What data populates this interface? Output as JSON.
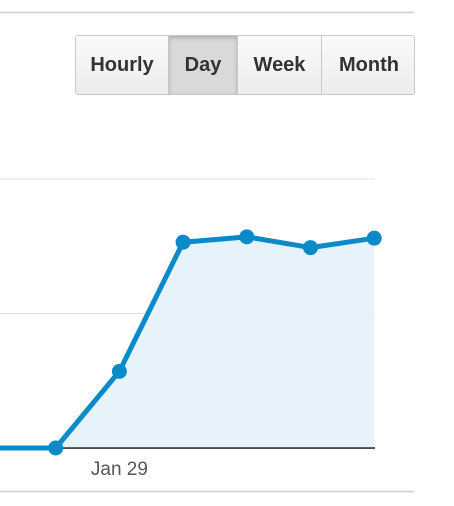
{
  "buttons": [
    "Hourly",
    "Day",
    "Week",
    "Month"
  ],
  "selected_button": 1,
  "chart_data": {
    "type": "area",
    "categories": [
      null,
      null,
      "Jan 29",
      null,
      null,
      null,
      null
    ],
    "values": [
      0,
      0,
      0.57,
      1.53,
      1.57,
      1.49,
      1.56
    ],
    "color": "#0b8ac9",
    "fill": "#e6f3fa",
    "ylim": [
      0,
      2
    ],
    "yticks": [
      0,
      1,
      2
    ],
    "grid": true
  }
}
